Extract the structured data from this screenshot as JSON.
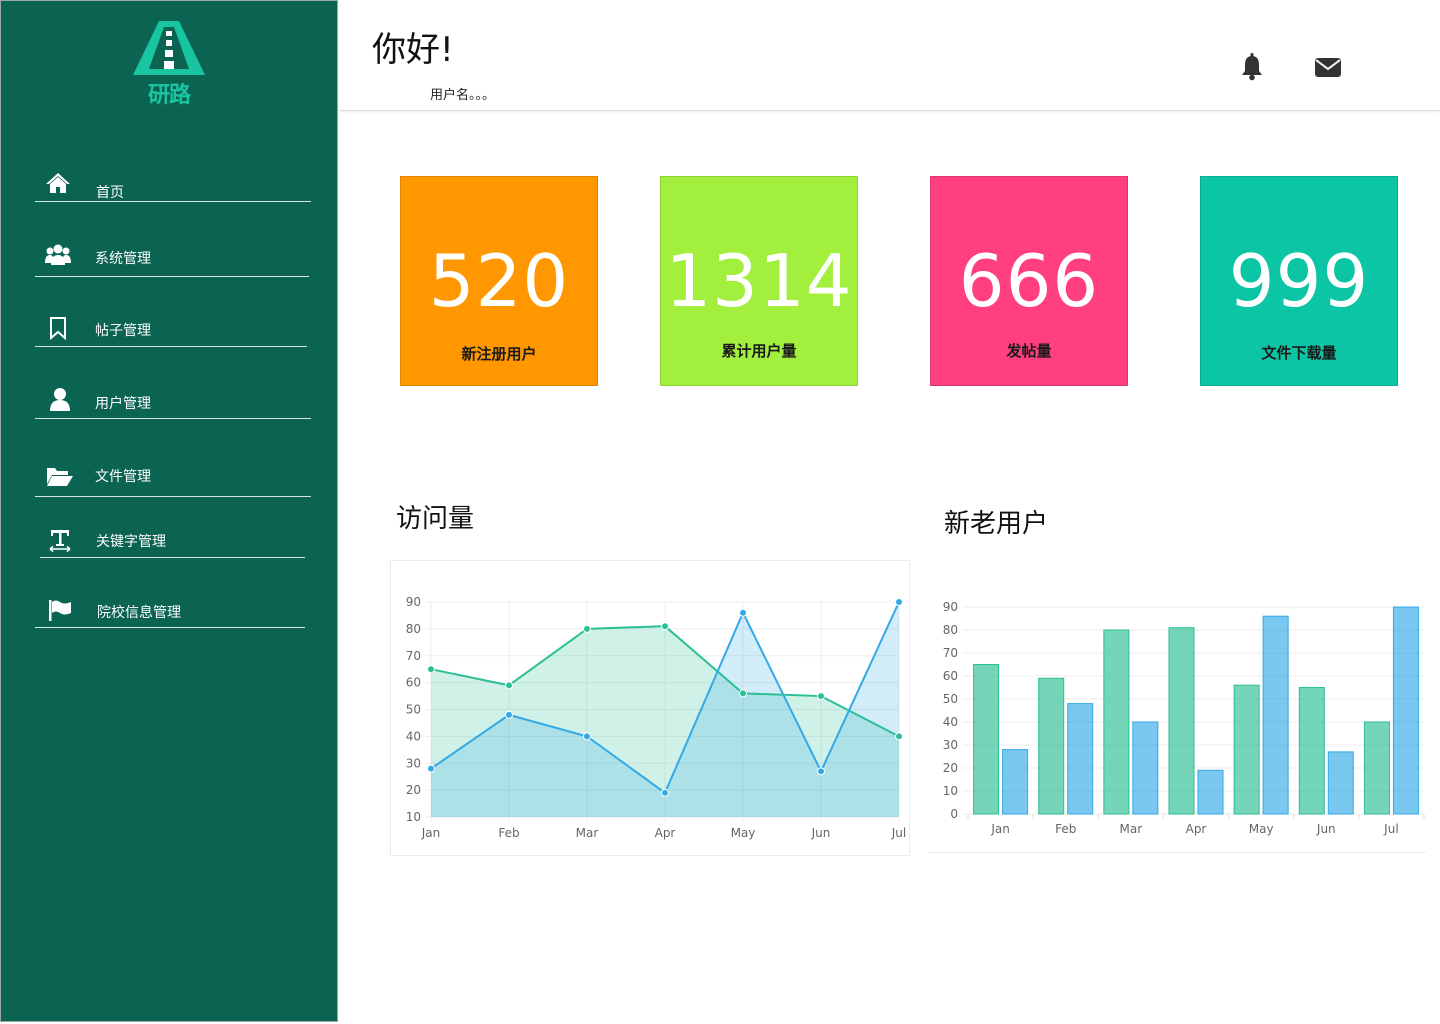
{
  "sidebar": {
    "logo_text": "研路",
    "items": [
      {
        "label": "首页",
        "icon": "home-icon"
      },
      {
        "label": "系统管理",
        "icon": "users-icon"
      },
      {
        "label": "帖子管理",
        "icon": "bookmark-icon"
      },
      {
        "label": "用户管理",
        "icon": "user-icon"
      },
      {
        "label": "文件管理",
        "icon": "folder-open-icon"
      },
      {
        "label": "关键字管理",
        "icon": "text-height-icon"
      },
      {
        "label": "院校信息管理",
        "icon": "flag-icon"
      }
    ]
  },
  "header": {
    "greeting": "你好!",
    "username": "用户名。。。",
    "icons": [
      "bell-icon",
      "envelope-icon"
    ]
  },
  "colors": {
    "sidebar_bg": "#0b6351",
    "card_orange": "#ff9800",
    "card_lime": "#a2f03d",
    "card_pink": "#ff3f7f",
    "card_teal": "#0bc5a4",
    "series_green": "#2bbf94",
    "series_blue": "#33a9e6"
  },
  "stats": [
    {
      "value": "520",
      "label": "新注册用户"
    },
    {
      "value": "1314",
      "label": "累计用户量"
    },
    {
      "value": "666",
      "label": "发帖量"
    },
    {
      "value": "999",
      "label": "文件下载量"
    }
  ],
  "visits": {
    "title": "访问量"
  },
  "users": {
    "title": "新老用户"
  },
  "chart_data": [
    {
      "type": "area",
      "categories": [
        "Jan",
        "Feb",
        "Mar",
        "Apr",
        "May",
        "Jun",
        "Jul"
      ],
      "series": [
        {
          "values": [
            65,
            59,
            80,
            81,
            56,
            55,
            40
          ]
        },
        {
          "values": [
            28,
            48,
            40,
            19,
            86,
            27,
            90
          ]
        }
      ],
      "ylim": [
        10,
        90
      ],
      "yticks": [
        10,
        20,
        30,
        40,
        50,
        60,
        70,
        80,
        90
      ],
      "grid": true
    },
    {
      "type": "bar",
      "categories": [
        "Jan",
        "Feb",
        "Mar",
        "Apr",
        "May",
        "Jun",
        "Jul"
      ],
      "series": [
        {
          "values": [
            65,
            59,
            80,
            81,
            56,
            55,
            40
          ]
        },
        {
          "values": [
            28,
            48,
            40,
            19,
            86,
            27,
            90
          ]
        }
      ],
      "ylim": [
        0,
        90
      ],
      "yticks": [
        0,
        10,
        20,
        30,
        40,
        50,
        60,
        70,
        80,
        90
      ],
      "grid": true
    }
  ]
}
